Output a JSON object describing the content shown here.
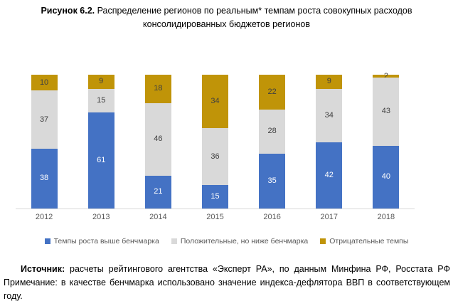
{
  "title": {
    "prefix": "Рисунок 6.2.",
    "text": " Распределение регионов по реальным* темпам роста совокупных расходов консолидированных бюджетов регионов"
  },
  "chart_data": {
    "type": "bar",
    "stacked": true,
    "orientation": "vertical",
    "categories": [
      "2012",
      "2013",
      "2014",
      "2015",
      "2016",
      "2017",
      "2018"
    ],
    "series": [
      {
        "name": "Темпы роста выше бенчмарка",
        "color": "#4472c4",
        "label_color": "#ffffff",
        "values": [
          38,
          61,
          21,
          15,
          35,
          42,
          40
        ]
      },
      {
        "name": "Положительные, но ниже бенчмарка",
        "color": "#d9d9d9",
        "label_color": "#404040",
        "values": [
          37,
          15,
          46,
          36,
          28,
          34,
          43
        ]
      },
      {
        "name": "Отрицательные темпы",
        "color": "#c09408",
        "label_color": "#404040",
        "values": [
          10,
          9,
          18,
          34,
          22,
          9,
          2
        ]
      }
    ],
    "ylim": [
      0,
      85
    ],
    "grid": false,
    "axis_line_color": "#d9d9d9",
    "data_labels": true,
    "legend_position": "bottom"
  },
  "footer": {
    "source_label": "Источник:",
    "source_text": " расчеты рейтингового агентства «Эксперт РА», по данным Минфина РФ, Росстата РФ ",
    "note_label": "Примечание:",
    "note_text": " в качестве бенчмарка использовано значение индекса-дефлятора ВВП в соответствующем году."
  }
}
